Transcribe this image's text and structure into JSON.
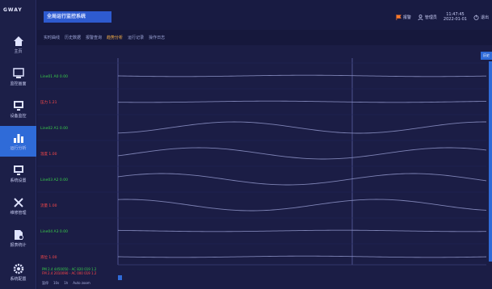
{
  "app": {
    "logo": "GWAY",
    "title": "全局运行监控系统"
  },
  "header": {
    "alarm_label": "报警",
    "user_label": "管理员",
    "clock_date": "2022-01-01",
    "clock_time": "11:47:45",
    "exit_label": "退出"
  },
  "sidebar": {
    "items": [
      {
        "label": "主页",
        "icon": "home-icon"
      },
      {
        "label": "监控画面",
        "icon": "monitor-icon"
      },
      {
        "label": "设备监控",
        "icon": "device-icon"
      },
      {
        "label": "运行分析",
        "icon": "bar-chart-icon"
      },
      {
        "label": "系统设置",
        "icon": "settings-icon"
      },
      {
        "label": "维修管理",
        "icon": "tools-icon"
      },
      {
        "label": "报表统计",
        "icon": "report-icon"
      },
      {
        "label": "系统配置",
        "icon": "gear-icon"
      }
    ]
  },
  "tabs": [
    {
      "label": "实时曲线"
    },
    {
      "label": "历史数据"
    },
    {
      "label": "报警查询"
    },
    {
      "label": "趋势分析"
    },
    {
      "label": "运行记录"
    },
    {
      "label": "操作日志"
    }
  ],
  "panel": {
    "side_button": "历史"
  },
  "lanes": [
    {
      "label": "Line01 A0 0.00",
      "color": "#39d04a"
    },
    {
      "label": "压力 1.21",
      "color": "#ff4a4a"
    },
    {
      "label": "Line02 A1 0.00",
      "color": "#39d04a"
    },
    {
      "label": "温度 1.00",
      "color": "#ff4a4a"
    },
    {
      "label": "Line03 A2 0.00",
      "color": "#39d04a"
    },
    {
      "label": "流量 1.00",
      "color": "#ff4a4a"
    },
    {
      "label": "Line04 A3 0.00",
      "color": "#39d04a"
    },
    {
      "label": "液位 1.00",
      "color": "#ff4a4a"
    }
  ],
  "legend": {
    "line1": "PM 2.4 4450050 - AC 820 019 1.2",
    "line2": "FM 2.4 2010090 - AC 000 019 1.2"
  },
  "footer": {
    "a": "暂停",
    "b": "10s",
    "c": "1h",
    "d": "Auto zoom"
  },
  "colors": {
    "accent": "#2f6bd8",
    "active_tab": "#ffb547",
    "curve": "#8f95c9"
  }
}
